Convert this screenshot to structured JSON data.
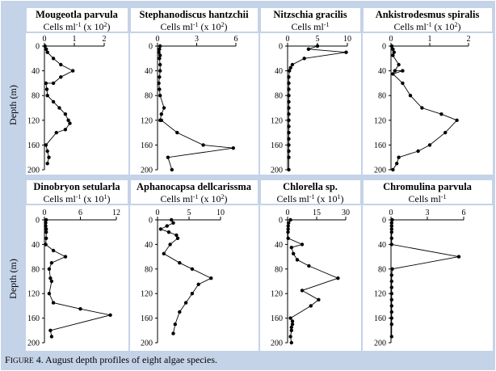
{
  "ylabel": "Depth (m)",
  "caption": {
    "lead": "F",
    "smallcaps": "IGURE",
    "rest": " 4. August depth profiles of eight algae species."
  },
  "colors": {
    "frame": "#c5d3e8",
    "axis": "#000000",
    "line": "#000000"
  },
  "chart_data": [
    {
      "type": "line",
      "title": "Mougeotla parvula",
      "unit_prefix": "Cells ml",
      "unit_exp": "-1",
      "unit_scale": " (x 10",
      "unit_scale_exp": "2",
      "unit_suffix": ")",
      "xticks": [
        "0",
        "1",
        "2"
      ],
      "xlim": [
        0,
        2
      ],
      "ylim": [
        0,
        200
      ],
      "yticks": [
        "0",
        "40",
        "80",
        "120",
        "160",
        "200"
      ],
      "x": [
        0.02,
        0.06,
        0.1,
        0.3,
        0.55,
        0.95,
        0.55,
        0.3,
        0.05,
        0.08,
        0.1,
        0.3,
        0.5,
        0.7,
        0.8,
        0.85,
        0.7,
        0.4,
        0.05,
        0.1,
        0.15,
        0.1
      ],
      "y": [
        0,
        5,
        10,
        20,
        30,
        40,
        50,
        60,
        60,
        70,
        80,
        90,
        100,
        110,
        120,
        125,
        135,
        140,
        160,
        170,
        180,
        190
      ]
    },
    {
      "type": "line",
      "title": "Stephanodiscus hantzchii",
      "unit_prefix": "Cells ml",
      "unit_exp": "-1",
      "unit_scale": " (x 10",
      "unit_scale_exp": "2",
      "unit_suffix": ")",
      "xticks": [
        "0",
        "3",
        "6"
      ],
      "xlim": [
        0,
        6
      ],
      "ylim": [
        0,
        200
      ],
      "yticks": [
        "0",
        "40",
        "80",
        "120",
        "160",
        "200"
      ],
      "x": [
        0.2,
        0.15,
        0.1,
        0.2,
        0.15,
        0.2,
        0.2,
        0.15,
        0.1,
        0.15,
        0.2,
        0.5,
        0.3,
        0.2,
        0.3,
        1.5,
        3.5,
        5.8,
        0.8,
        1.1
      ],
      "y": [
        0,
        5,
        10,
        15,
        20,
        30,
        40,
        50,
        60,
        70,
        80,
        100,
        110,
        120,
        120,
        140,
        160,
        165,
        180,
        200
      ]
    },
    {
      "type": "line",
      "title": "Nitzschia gracilis",
      "unit_prefix": "Cells ml",
      "unit_exp": "-1",
      "unit_scale": "",
      "unit_scale_exp": "",
      "unit_suffix": "",
      "xticks": [
        "0",
        "5",
        "10"
      ],
      "xlim": [
        0,
        10
      ],
      "ylim": [
        0,
        200
      ],
      "yticks": [
        "0",
        "40",
        "80",
        "120",
        "160",
        "200"
      ],
      "x": [
        5,
        3.5,
        9.8,
        2.8,
        0.8,
        0.5,
        0.3,
        0.2,
        0.2,
        0.2,
        0.2,
        0.2,
        0.2,
        0.2,
        0.2,
        0.2,
        0.2,
        0.2,
        0.2,
        0.2,
        0.2,
        0.2
      ],
      "y": [
        0,
        5,
        10,
        20,
        30,
        35,
        40,
        50,
        60,
        70,
        80,
        90,
        100,
        110,
        120,
        130,
        140,
        150,
        160,
        170,
        180,
        200
      ]
    },
    {
      "type": "line",
      "title": "Ankistrodesmus spiralis",
      "unit_prefix": "Cells ml",
      "unit_exp": "-1",
      "unit_scale": " (x 10",
      "unit_scale_exp": "2",
      "unit_suffix": ")",
      "xticks": [
        "0",
        "1",
        "2"
      ],
      "xlim": [
        0,
        2
      ],
      "ylim": [
        0,
        200
      ],
      "yticks": [
        "0",
        "40",
        "80",
        "120",
        "160",
        "200"
      ],
      "x": [
        0.02,
        0.05,
        0.08,
        0.05,
        0.2,
        0.1,
        0.3,
        0.05,
        0.3,
        0.5,
        0.8,
        1.3,
        1.7,
        1.4,
        1.0,
        0.7,
        0.2,
        0.15,
        0.05
      ],
      "y": [
        0,
        5,
        10,
        15,
        30,
        40,
        40,
        45,
        60,
        80,
        100,
        110,
        120,
        140,
        160,
        170,
        180,
        190,
        200
      ]
    },
    {
      "type": "line",
      "title": "Dinobryon setularla",
      "unit_prefix": "Cells ml",
      "unit_exp": "-1",
      "unit_scale": " (x 10",
      "unit_scale_exp": "1",
      "unit_suffix": ")",
      "xticks": [
        "0",
        "6",
        "12"
      ],
      "xlim": [
        0,
        12
      ],
      "ylim": [
        0,
        200
      ],
      "yticks": [
        "0",
        "40",
        "80",
        "120",
        "160",
        "200"
      ],
      "x": [
        0.3,
        0.2,
        0.2,
        0.3,
        0.3,
        0.3,
        0.2,
        0.2,
        1.5,
        3.5,
        1.2,
        0.8,
        1.0,
        1.2,
        0.8,
        1.5,
        6.0,
        11.0,
        1.0,
        1.2
      ],
      "y": [
        0,
        5,
        10,
        15,
        20,
        30,
        40,
        40,
        50,
        60,
        70,
        80,
        95,
        100,
        120,
        135,
        145,
        155,
        180,
        190
      ]
    },
    {
      "type": "line",
      "title": "Aphanocapsa dellcarissma",
      "unit_prefix": "Cells ml",
      "unit_exp": "-1",
      "unit_scale": " (x 10",
      "unit_scale_exp": "2",
      "unit_suffix": ")",
      "xticks": [
        "0",
        "5",
        "10"
      ],
      "xlim": [
        0,
        10
      ],
      "ylim": [
        0,
        200
      ],
      "yticks": [
        "0",
        "40",
        "80",
        "120",
        "160",
        "200"
      ],
      "x": [
        2.2,
        2.5,
        1.5,
        0.5,
        1.8,
        3.0,
        3.2,
        2.0,
        1.0,
        3.5,
        5.5,
        8.5,
        6.5,
        5.5,
        4.5,
        3.5,
        2.8,
        2.5
      ],
      "y": [
        0,
        5,
        10,
        15,
        20,
        25,
        30,
        40,
        55,
        70,
        80,
        95,
        105,
        120,
        135,
        150,
        170,
        185
      ]
    },
    {
      "type": "line",
      "title": "Chlorella sp.",
      "unit_prefix": "Cells ml",
      "unit_exp": "-1",
      "unit_scale": " (x 10",
      "unit_scale_exp": "1",
      "unit_suffix": ")",
      "xticks": [
        "0",
        "15",
        "30"
      ],
      "xlim": [
        0,
        30
      ],
      "ylim": [
        0,
        200
      ],
      "yticks": [
        "0",
        "40",
        "80",
        "120",
        "160",
        "200"
      ],
      "x": [
        1.5,
        0.5,
        0.3,
        0.3,
        0.2,
        0.3,
        7.5,
        2.0,
        3.0,
        5.0,
        11.0,
        26.0,
        7.5,
        16.0,
        12.0,
        1.5,
        2.5,
        2.5,
        2.0,
        2.0,
        1.5,
        2.0
      ],
      "y": [
        0,
        5,
        10,
        15,
        20,
        30,
        40,
        45,
        55,
        65,
        75,
        95,
        115,
        130,
        140,
        160,
        165,
        170,
        175,
        180,
        190,
        200
      ]
    },
    {
      "type": "line",
      "title": "Chromulina parvula",
      "unit_prefix": "Cells ml",
      "unit_exp": "-1",
      "unit_scale": "",
      "unit_scale_exp": "",
      "unit_suffix": "",
      "xticks": [
        "0",
        "3",
        "6"
      ],
      "xlim": [
        0,
        6
      ],
      "ylim": [
        0,
        200
      ],
      "yticks": [
        "0",
        "40",
        "80",
        "120",
        "160",
        "200"
      ],
      "x": [
        0.1,
        0.05,
        0.05,
        0.05,
        0.05,
        0.05,
        0.05,
        5.6,
        0.1,
        0.05,
        0.05,
        0.05,
        0.05,
        0.05,
        0.05,
        0.05,
        0.05,
        0.05,
        0.05
      ],
      "y": [
        0,
        5,
        10,
        15,
        20,
        30,
        40,
        60,
        80,
        90,
        100,
        110,
        120,
        130,
        140,
        150,
        160,
        170,
        190
      ]
    }
  ]
}
